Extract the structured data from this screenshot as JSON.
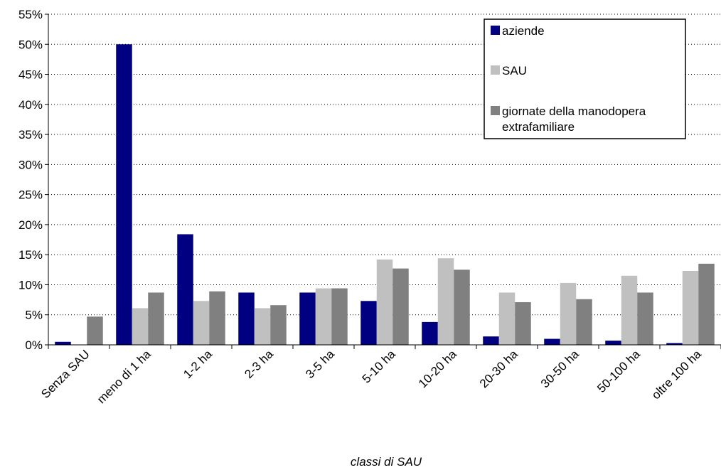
{
  "chart_data": {
    "type": "bar",
    "categories": [
      "Senza SAU",
      "meno di 1 ha",
      "1-2 ha",
      "2-3 ha",
      "3-5 ha",
      "5-10 ha",
      "10-20 ha",
      "20-30 ha",
      "30-50 ha",
      "50-100 ha",
      "oltre 100 ha"
    ],
    "series": [
      {
        "name": "aziende",
        "color": "#000080",
        "values": [
          0.5,
          50.0,
          18.4,
          8.7,
          8.7,
          7.3,
          3.8,
          1.4,
          1.0,
          0.7,
          0.3
        ]
      },
      {
        "name": "SAU",
        "color": "#C0C0C0",
        "values": [
          0.0,
          6.1,
          7.3,
          6.1,
          9.4,
          14.2,
          14.4,
          8.7,
          10.3,
          11.5,
          12.3
        ]
      },
      {
        "name": "giornate della manodopera extrafamiliare",
        "legend_lines": [
          "giornate della manodopera",
          "extrafamiliare"
        ],
        "color": "#808080",
        "values": [
          4.7,
          8.7,
          8.9,
          6.6,
          9.4,
          12.7,
          12.5,
          7.1,
          7.6,
          8.7,
          13.5
        ]
      }
    ],
    "yticks": [
      "0%",
      "5%",
      "10%",
      "15%",
      "20%",
      "25%",
      "30%",
      "35%",
      "40%",
      "45%",
      "50%",
      "55%"
    ],
    "ylim": [
      0,
      55
    ],
    "xlabel": "classi di SAU",
    "ylabel": "",
    "grid": "horizontal dotted",
    "legend_position": "top-right"
  }
}
